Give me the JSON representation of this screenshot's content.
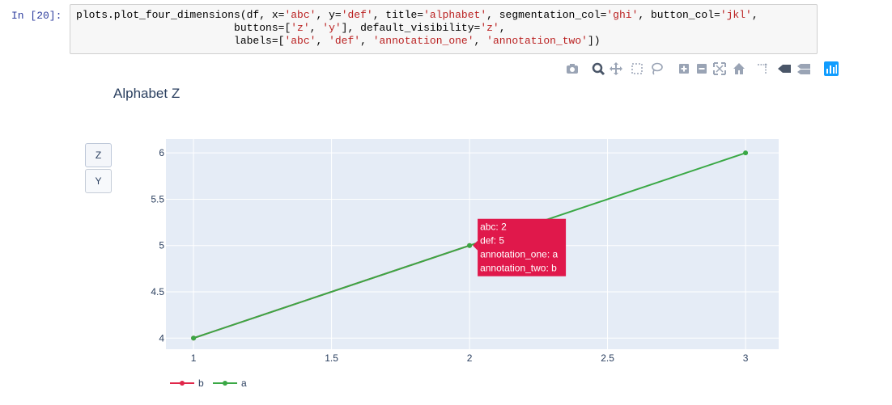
{
  "notebook": {
    "prompt": "In [20]:",
    "code_lines": [
      [
        {
          "t": "plots.plot_four_dimensions(df, x=",
          "c": "#000000"
        },
        {
          "t": "'abc'",
          "c": "#ba2121"
        },
        {
          "t": ", y=",
          "c": "#000000"
        },
        {
          "t": "'def'",
          "c": "#ba2121"
        },
        {
          "t": ", title=",
          "c": "#000000"
        },
        {
          "t": "'alphabet'",
          "c": "#ba2121"
        },
        {
          "t": ", segmentation_col=",
          "c": "#000000"
        },
        {
          "t": "'ghi'",
          "c": "#ba2121"
        },
        {
          "t": ", button_col=",
          "c": "#000000"
        },
        {
          "t": "'jkl'",
          "c": "#ba2121"
        },
        {
          "t": ",",
          "c": "#000000"
        }
      ],
      [
        {
          "t": "                         buttons=[",
          "c": "#000000"
        },
        {
          "t": "'z'",
          "c": "#ba2121"
        },
        {
          "t": ", ",
          "c": "#000000"
        },
        {
          "t": "'y'",
          "c": "#ba2121"
        },
        {
          "t": "], default_visibility=",
          "c": "#000000"
        },
        {
          "t": "'z'",
          "c": "#ba2121"
        },
        {
          "t": ",",
          "c": "#000000"
        }
      ],
      [
        {
          "t": "                         labels=[",
          "c": "#000000"
        },
        {
          "t": "'abc'",
          "c": "#ba2121"
        },
        {
          "t": ", ",
          "c": "#000000"
        },
        {
          "t": "'def'",
          "c": "#ba2121"
        },
        {
          "t": ", ",
          "c": "#000000"
        },
        {
          "t": "'annotation_one'",
          "c": "#ba2121"
        },
        {
          "t": ", ",
          "c": "#000000"
        },
        {
          "t": "'annotation_two'",
          "c": "#ba2121"
        },
        {
          "t": "])",
          "c": "#000000"
        }
      ]
    ]
  },
  "modebar": {
    "icons": [
      "camera-icon",
      "zoom-icon",
      "pan-icon",
      "box-select-icon",
      "lasso-select-icon",
      "zoom-in-icon",
      "zoom-out-icon",
      "autoscale-icon",
      "reset-axes-icon",
      "spike-lines-icon",
      "hover-closest-icon",
      "hover-compare-icon",
      "plotly-logo-icon"
    ]
  },
  "buttons": [
    {
      "label": "Z",
      "active": true
    },
    {
      "label": "Y",
      "active": false
    }
  ],
  "chart_data": {
    "type": "line",
    "title": "Alphabet Z",
    "xlim": [
      0.9,
      3.12
    ],
    "ylim": [
      3.88,
      6.15
    ],
    "x_ticks": [
      1,
      1.5,
      2,
      2.5,
      3
    ],
    "x_tick_labels": [
      "1",
      "1.5",
      "2",
      "2.5",
      "3"
    ],
    "y_ticks": [
      4,
      4.5,
      5,
      5.5,
      6
    ],
    "y_tick_labels": [
      "4",
      "4.5",
      "5",
      "5.5",
      "6"
    ],
    "grid": true,
    "legend_position": "bottom-left",
    "series": [
      {
        "name": "b",
        "color": "#e0274a",
        "x": [
          1,
          2
        ],
        "y": [
          4,
          5
        ]
      },
      {
        "name": "a",
        "color": "#3aa845",
        "x": [
          1,
          2,
          3
        ],
        "y": [
          4,
          5,
          6
        ]
      }
    ],
    "legend": [
      {
        "name": "b",
        "color": "#e0274a"
      },
      {
        "name": "a",
        "color": "#3aa845"
      }
    ],
    "hover": {
      "series": "b",
      "x": 2,
      "y": 5,
      "color": "#e0184b",
      "lines": [
        "abc: 2",
        "def: 5",
        "annotation_one: a",
        "annotation_two: b"
      ]
    },
    "colors": {
      "plot_bg": "#e5ecf6",
      "grid": "#ffffff",
      "tick_text": "#2a3f5f"
    }
  }
}
